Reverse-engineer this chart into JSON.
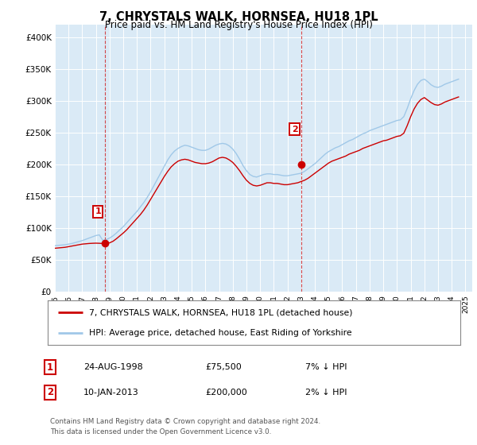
{
  "title": "7, CHRYSTALS WALK, HORNSEA, HU18 1PL",
  "subtitle": "Price paid vs. HM Land Registry's House Price Index (HPI)",
  "xlim_start": 1995.0,
  "xlim_end": 2025.5,
  "ylim_min": 0,
  "ylim_max": 420000,
  "yticks": [
    0,
    50000,
    100000,
    150000,
    200000,
    250000,
    300000,
    350000,
    400000
  ],
  "ytick_labels": [
    "£0",
    "£50K",
    "£100K",
    "£150K",
    "£200K",
    "£250K",
    "£300K",
    "£350K",
    "£400K"
  ],
  "xticks": [
    1995,
    1996,
    1997,
    1998,
    1999,
    2000,
    2001,
    2002,
    2003,
    2004,
    2005,
    2006,
    2007,
    2008,
    2009,
    2010,
    2011,
    2012,
    2013,
    2014,
    2015,
    2016,
    2017,
    2018,
    2019,
    2020,
    2021,
    2022,
    2023,
    2024,
    2025
  ],
  "sale1_x": 1998.646,
  "sale1_y": 75500,
  "sale2_x": 2013.03,
  "sale2_y": 200000,
  "hpi_color": "#a0c8e8",
  "price_color": "#cc0000",
  "background_color": "#daeaf6",
  "legend_label_price": "7, CHRYSTALS WALK, HORNSEA, HU18 1PL (detached house)",
  "legend_label_hpi": "HPI: Average price, detached house, East Riding of Yorkshire",
  "annotation1_date": "24-AUG-1998",
  "annotation1_price": "£75,500",
  "annotation1_hpi": "7% ↓ HPI",
  "annotation2_date": "10-JAN-2013",
  "annotation2_price": "£200,000",
  "annotation2_hpi": "2% ↓ HPI",
  "footnote": "Contains HM Land Registry data © Crown copyright and database right 2024.\nThis data is licensed under the Open Government Licence v3.0.",
  "hpi_data_x": [
    1995.0,
    1995.25,
    1995.5,
    1995.75,
    1996.0,
    1996.25,
    1996.5,
    1996.75,
    1997.0,
    1997.25,
    1997.5,
    1997.75,
    1998.0,
    1998.25,
    1998.5,
    1998.75,
    1999.0,
    1999.25,
    1999.5,
    1999.75,
    2000.0,
    2000.25,
    2000.5,
    2000.75,
    2001.0,
    2001.25,
    2001.5,
    2001.75,
    2002.0,
    2002.25,
    2002.5,
    2002.75,
    2003.0,
    2003.25,
    2003.5,
    2003.75,
    2004.0,
    2004.25,
    2004.5,
    2004.75,
    2005.0,
    2005.25,
    2005.5,
    2005.75,
    2006.0,
    2006.25,
    2006.5,
    2006.75,
    2007.0,
    2007.25,
    2007.5,
    2007.75,
    2008.0,
    2008.25,
    2008.5,
    2008.75,
    2009.0,
    2009.25,
    2009.5,
    2009.75,
    2010.0,
    2010.25,
    2010.5,
    2010.75,
    2011.0,
    2011.25,
    2011.5,
    2011.75,
    2012.0,
    2012.25,
    2012.5,
    2012.75,
    2013.0,
    2013.25,
    2013.5,
    2013.75,
    2014.0,
    2014.25,
    2014.5,
    2014.75,
    2015.0,
    2015.25,
    2015.5,
    2015.75,
    2016.0,
    2016.25,
    2016.5,
    2016.75,
    2017.0,
    2017.25,
    2017.5,
    2017.75,
    2018.0,
    2018.25,
    2018.5,
    2018.75,
    2019.0,
    2019.25,
    2019.5,
    2019.75,
    2020.0,
    2020.25,
    2020.5,
    2020.75,
    2021.0,
    2021.25,
    2021.5,
    2021.75,
    2022.0,
    2022.25,
    2022.5,
    2022.75,
    2023.0,
    2023.25,
    2023.5,
    2023.75,
    2024.0,
    2024.25,
    2024.5
  ],
  "hpi_data_y": [
    72000,
    72500,
    73000,
    73500,
    74500,
    75500,
    77000,
    78500,
    80000,
    82000,
    84000,
    86000,
    88000,
    89000,
    80500,
    81500,
    84000,
    87500,
    92000,
    97000,
    102000,
    108000,
    114000,
    120000,
    126000,
    133000,
    140000,
    148000,
    157000,
    167000,
    177000,
    187000,
    197000,
    207000,
    215000,
    221000,
    225000,
    228000,
    230000,
    229000,
    227000,
    225000,
    223000,
    222000,
    222000,
    224000,
    227000,
    230000,
    232000,
    233000,
    232000,
    229000,
    224000,
    217000,
    208000,
    198000,
    190000,
    184000,
    181000,
    180000,
    182000,
    184000,
    185000,
    185000,
    184000,
    184000,
    183000,
    182000,
    182000,
    183000,
    184000,
    185000,
    186000,
    189000,
    193000,
    197000,
    201000,
    206000,
    211000,
    216000,
    220000,
    223000,
    226000,
    228000,
    231000,
    234000,
    237000,
    239000,
    242000,
    245000,
    248000,
    250000,
    253000,
    255000,
    257000,
    259000,
    261000,
    263000,
    265000,
    267000,
    269000,
    270000,
    275000,
    288000,
    303000,
    316000,
    326000,
    332000,
    334000,
    330000,
    325000,
    322000,
    321000,
    323000,
    326000,
    328000,
    330000,
    332000,
    334000
  ],
  "price_data_x": [
    1995.0,
    1995.25,
    1995.5,
    1995.75,
    1996.0,
    1996.25,
    1996.5,
    1996.75,
    1997.0,
    1997.25,
    1997.5,
    1997.75,
    1998.0,
    1998.25,
    1998.5,
    1998.75,
    1999.0,
    1999.25,
    1999.5,
    1999.75,
    2000.0,
    2000.25,
    2000.5,
    2000.75,
    2001.0,
    2001.25,
    2001.5,
    2001.75,
    2002.0,
    2002.25,
    2002.5,
    2002.75,
    2003.0,
    2003.25,
    2003.5,
    2003.75,
    2004.0,
    2004.25,
    2004.5,
    2004.75,
    2005.0,
    2005.25,
    2005.5,
    2005.75,
    2006.0,
    2006.25,
    2006.5,
    2006.75,
    2007.0,
    2007.25,
    2007.5,
    2007.75,
    2008.0,
    2008.25,
    2008.5,
    2008.75,
    2009.0,
    2009.25,
    2009.5,
    2009.75,
    2010.0,
    2010.25,
    2010.5,
    2010.75,
    2011.0,
    2011.25,
    2011.5,
    2011.75,
    2012.0,
    2012.25,
    2012.5,
    2012.75,
    2013.0,
    2013.25,
    2013.5,
    2013.75,
    2014.0,
    2014.25,
    2014.5,
    2014.75,
    2015.0,
    2015.25,
    2015.5,
    2015.75,
    2016.0,
    2016.25,
    2016.5,
    2016.75,
    2017.0,
    2017.25,
    2017.5,
    2017.75,
    2018.0,
    2018.25,
    2018.5,
    2018.75,
    2019.0,
    2019.25,
    2019.5,
    2019.75,
    2020.0,
    2020.25,
    2020.5,
    2020.75,
    2021.0,
    2021.25,
    2021.5,
    2021.75,
    2022.0,
    2022.25,
    2022.5,
    2022.75,
    2023.0,
    2023.25,
    2023.5,
    2023.75,
    2024.0,
    2024.25,
    2024.5
  ],
  "price_data_y": [
    68000,
    68500,
    69000,
    69500,
    70500,
    71500,
    72500,
    73500,
    74500,
    75000,
    75500,
    75800,
    76000,
    75800,
    75500,
    75500,
    76500,
    79000,
    83000,
    87500,
    92000,
    97000,
    103000,
    109000,
    115000,
    121000,
    128000,
    136000,
    145000,
    154000,
    163000,
    172000,
    181000,
    189000,
    196000,
    201000,
    205000,
    207000,
    208000,
    207000,
    205000,
    203000,
    202000,
    201000,
    201000,
    202000,
    204000,
    207000,
    210000,
    211000,
    210000,
    207000,
    203000,
    197000,
    190000,
    182000,
    175000,
    170000,
    167000,
    166000,
    167000,
    169000,
    171000,
    171000,
    170000,
    170000,
    169000,
    168000,
    168000,
    169000,
    170000,
    171000,
    173000,
    175000,
    178000,
    182000,
    186000,
    190000,
    194000,
    198000,
    202000,
    205000,
    207000,
    209000,
    211000,
    213000,
    216000,
    218000,
    220000,
    222000,
    225000,
    227000,
    229000,
    231000,
    233000,
    235000,
    237000,
    238000,
    240000,
    242000,
    244000,
    245000,
    249000,
    261000,
    275000,
    287000,
    296000,
    302000,
    305000,
    301000,
    297000,
    294000,
    293000,
    295000,
    298000,
    300000,
    302000,
    304000,
    306000
  ]
}
